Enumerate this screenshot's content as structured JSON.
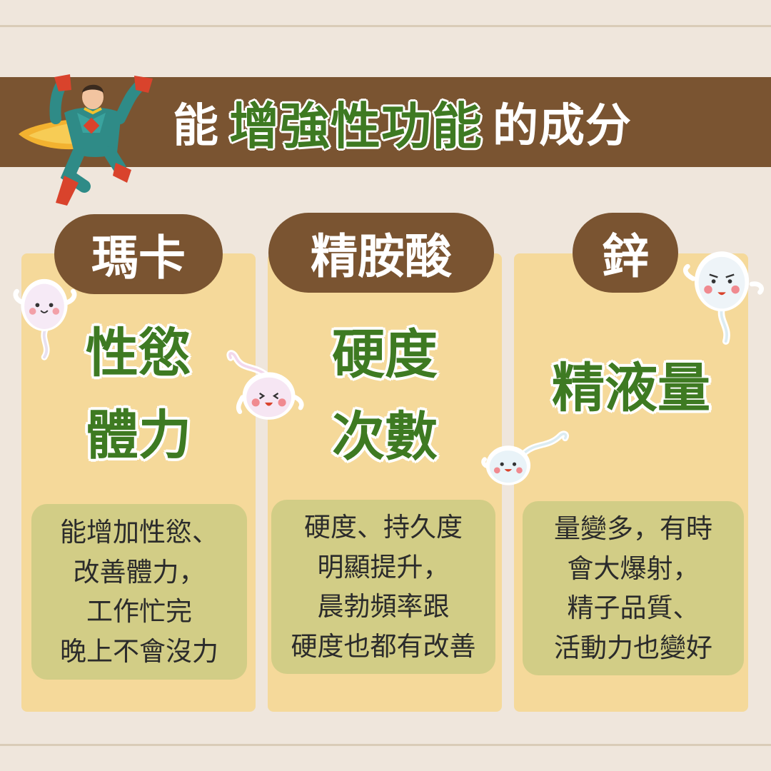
{
  "title": {
    "prefix": "能",
    "highlight": "增強性功能",
    "suffix": "的成分"
  },
  "ingredients": [
    {
      "name": "瑪卡",
      "effects": [
        "性慾",
        "體力"
      ],
      "description": [
        "能增加性慾、",
        "改善體力，",
        "工作忙完",
        "晚上不會沒力"
      ]
    },
    {
      "name": "精胺酸",
      "effects": [
        "硬度",
        "次數"
      ],
      "description": [
        "硬度、持久度",
        "明顯提升，",
        "晨勃頻率跟",
        "硬度也都有改善"
      ]
    },
    {
      "name": "鋅",
      "effects": [
        "精液量"
      ],
      "description": [
        "量變多，有時",
        "會大爆射，",
        "精子品質、",
        "活動力也變好"
      ]
    }
  ],
  "colors": {
    "background": "#efe6dc",
    "banner": "#7a5431",
    "card": "#f5d99a",
    "box": "#d2cd86",
    "highlight_text": "#3e7a22"
  },
  "icons": [
    "superhero-illustration",
    "sperm-mascot-icon"
  ]
}
